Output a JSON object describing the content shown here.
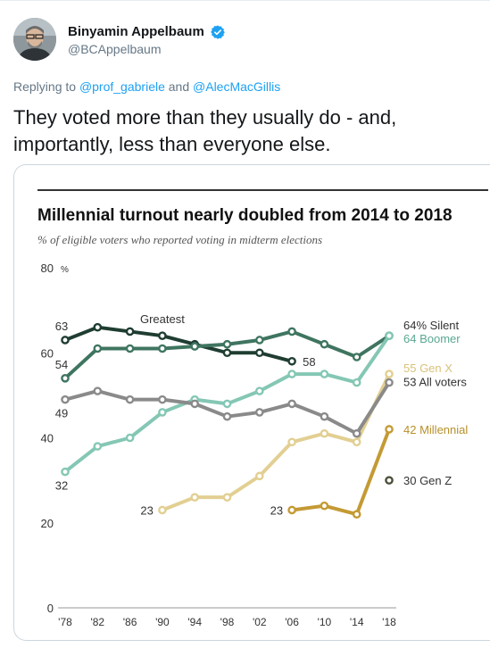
{
  "tweet": {
    "author_name": "Binyamin Appelbaum",
    "author_handle": "@BCAppelbaum",
    "verified": true,
    "avatar_icon": "person-avatar",
    "reply_prefix": "Replying to",
    "reply_user1": "@prof_gabriele",
    "reply_and": "and",
    "reply_user2": "@AlecMacGillis",
    "text_line1": "They voted more than they usually do - and,",
    "text_line2": "importantly, less than everyone else.",
    "link_color": "#1da1f2",
    "verified_color": "#1da1f2"
  },
  "chart_data": {
    "type": "line",
    "title": "Millennial turnout nearly doubled from 2014 to 2018",
    "subtitle": "% of eligible voters who reported voting in midterm elections",
    "ylim": [
      0,
      80
    ],
    "yticks": [
      0,
      20,
      40,
      60,
      80
    ],
    "ytick_labels": [
      "0",
      "20",
      "40",
      "60",
      "80"
    ],
    "y_unit": "%",
    "x": [
      1978,
      1982,
      1986,
      1990,
      1994,
      1998,
      2002,
      2006,
      2010,
      2014,
      2018
    ],
    "xtick_labels": [
      "'78",
      "'82",
      "'86",
      "'90",
      "'94",
      "'98",
      "'02",
      "'06",
      "'10",
      "'14",
      "'18"
    ],
    "grid": false,
    "series": [
      {
        "name": "Greatest",
        "color": "#1f3d31",
        "values": [
          63,
          66,
          65,
          64,
          62,
          60,
          60,
          58,
          null,
          null,
          null
        ],
        "labels": {
          "start": "63",
          "end": "58",
          "name": "Greatest"
        }
      },
      {
        "name": "Silent",
        "color": "#3f7560",
        "values": [
          54,
          61,
          61,
          61,
          61.5,
          62,
          63,
          65,
          62,
          59,
          64
        ],
        "labels": {
          "start": "54",
          "end": "64% Silent"
        }
      },
      {
        "name": "Boomer",
        "color": "#84c7b4",
        "values": [
          32,
          38,
          40,
          46,
          49,
          48,
          51,
          55,
          55,
          53,
          64
        ],
        "labels": {
          "start": "32",
          "end": "64 Boomer"
        }
      },
      {
        "name": "Gen X",
        "color": "#e2cf92",
        "values": [
          null,
          null,
          null,
          23,
          26,
          26,
          31,
          39,
          41,
          39,
          55
        ],
        "labels": {
          "start": "23",
          "end": "55 Gen X"
        }
      },
      {
        "name": "All voters",
        "color": "#8a8a8a",
        "values": [
          49,
          51,
          49,
          49,
          48,
          45,
          46,
          48,
          45,
          41,
          53
        ],
        "labels": {
          "start": "49",
          "end": "53 All voters"
        }
      },
      {
        "name": "Millennial",
        "color": "#c49a34",
        "values": [
          null,
          null,
          null,
          null,
          null,
          null,
          null,
          23,
          24,
          22,
          42
        ],
        "labels": {
          "start": "23",
          "end": "42 Millennial"
        }
      },
      {
        "name": "Gen Z",
        "color": "#4d4d3a",
        "values": [
          null,
          null,
          null,
          null,
          null,
          null,
          null,
          null,
          null,
          null,
          30
        ],
        "labels": {
          "end": "30 Gen Z"
        }
      }
    ]
  }
}
